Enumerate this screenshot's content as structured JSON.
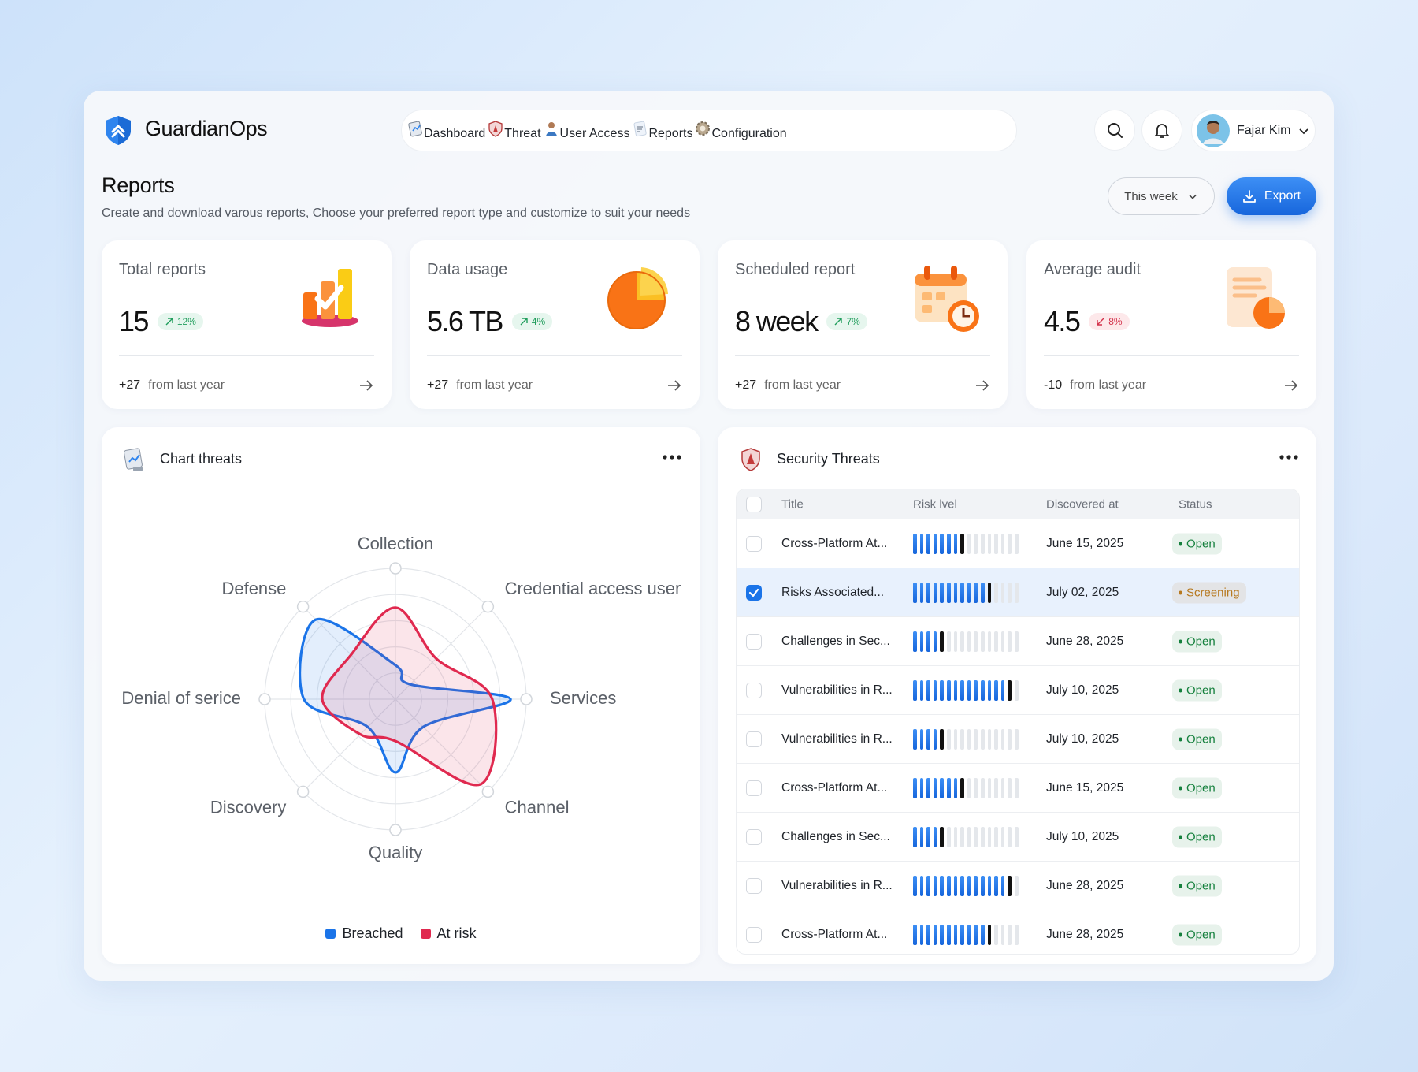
{
  "header": {
    "brand": "GuardianOps",
    "nav": [
      {
        "label": "Dashboard",
        "active": false
      },
      {
        "label": "Threat",
        "active": false
      },
      {
        "label": "User Access",
        "active": false
      },
      {
        "label": "Reports",
        "active": true
      },
      {
        "label": "Configuration",
        "active": false
      }
    ],
    "user": "Fajar Kim"
  },
  "page": {
    "title": "Reports",
    "subtitle": "Create and download varous reports, Choose your preferred report type and customize to suit your needs",
    "period": "This week",
    "export": "Export"
  },
  "stats": [
    {
      "label": "Total reports",
      "value": "15",
      "change": "12%",
      "trend": "up",
      "delta": "+27",
      "note": "from last year"
    },
    {
      "label": "Data usage",
      "value": "5.6 TB",
      "change": "4%",
      "trend": "up",
      "delta": "+27",
      "note": "from last year"
    },
    {
      "label": "Scheduled report",
      "value": "8 week",
      "change": "7%",
      "trend": "up",
      "delta": "+27",
      "note": "from last year"
    },
    {
      "label": "Average audit",
      "value": "4.5",
      "change": "8%",
      "trend": "down",
      "delta": "-10",
      "note": "from last year"
    }
  ],
  "chart_data": {
    "type": "radar",
    "title": "Chart threats",
    "categories": [
      "Collection",
      "Credential access user",
      "Services",
      "Channel",
      "Quality",
      "Discovery",
      "Denial of serice",
      "Defense"
    ],
    "ylim": [
      0,
      5
    ],
    "series": [
      {
        "name": "Breached",
        "color": "#1b74e8",
        "values": [
          1.3,
          0.8,
          4.4,
          1.5,
          2.8,
          1.5,
          3.5,
          4.3
        ]
      },
      {
        "name": "At risk",
        "color": "#e0294f",
        "values": [
          3.5,
          2.2,
          3.7,
          4.6,
          1.6,
          1.9,
          2.8,
          2.4
        ]
      }
    ]
  },
  "table": {
    "title": "Security Threats",
    "columns": [
      "Title",
      "Risk lvel",
      "Discovered at",
      "Status"
    ],
    "risk_lim": [
      0,
      16
    ],
    "rows": [
      {
        "checked": false,
        "title": "Cross-Platform At...",
        "risk": 8,
        "date": "June 15, 2025",
        "status": "Open",
        "status_color": "#15803d"
      },
      {
        "checked": true,
        "title": "Risks Associated...",
        "risk": 12,
        "date": "July 02, 2025",
        "status": "Screening",
        "status_color": "#b7791f"
      },
      {
        "checked": false,
        "title": "Challenges in Sec...",
        "risk": 5,
        "date": "June 28, 2025",
        "status": "Open",
        "status_color": "#15803d"
      },
      {
        "checked": false,
        "title": "Vulnerabilities in R...",
        "risk": 15,
        "date": "July 10, 2025",
        "status": "Open",
        "status_color": "#15803d"
      },
      {
        "checked": false,
        "title": "Vulnerabilities in R...",
        "risk": 5,
        "date": "July 10, 2025",
        "status": "Open",
        "status_color": "#15803d"
      },
      {
        "checked": false,
        "title": "Cross-Platform At...",
        "risk": 8,
        "date": "June 15, 2025",
        "status": "Open",
        "status_color": "#15803d"
      },
      {
        "checked": false,
        "title": "Challenges in Sec...",
        "risk": 5,
        "date": "July 10, 2025",
        "status": "Open",
        "status_color": "#15803d"
      },
      {
        "checked": false,
        "title": "Vulnerabilities in R...",
        "risk": 15,
        "date": "June 28, 2025",
        "status": "Open",
        "status_color": "#15803d"
      },
      {
        "checked": false,
        "title": "Cross-Platform At...",
        "risk": 12,
        "date": "June 28, 2025",
        "status": "Open",
        "status_color": "#15803d"
      }
    ]
  }
}
